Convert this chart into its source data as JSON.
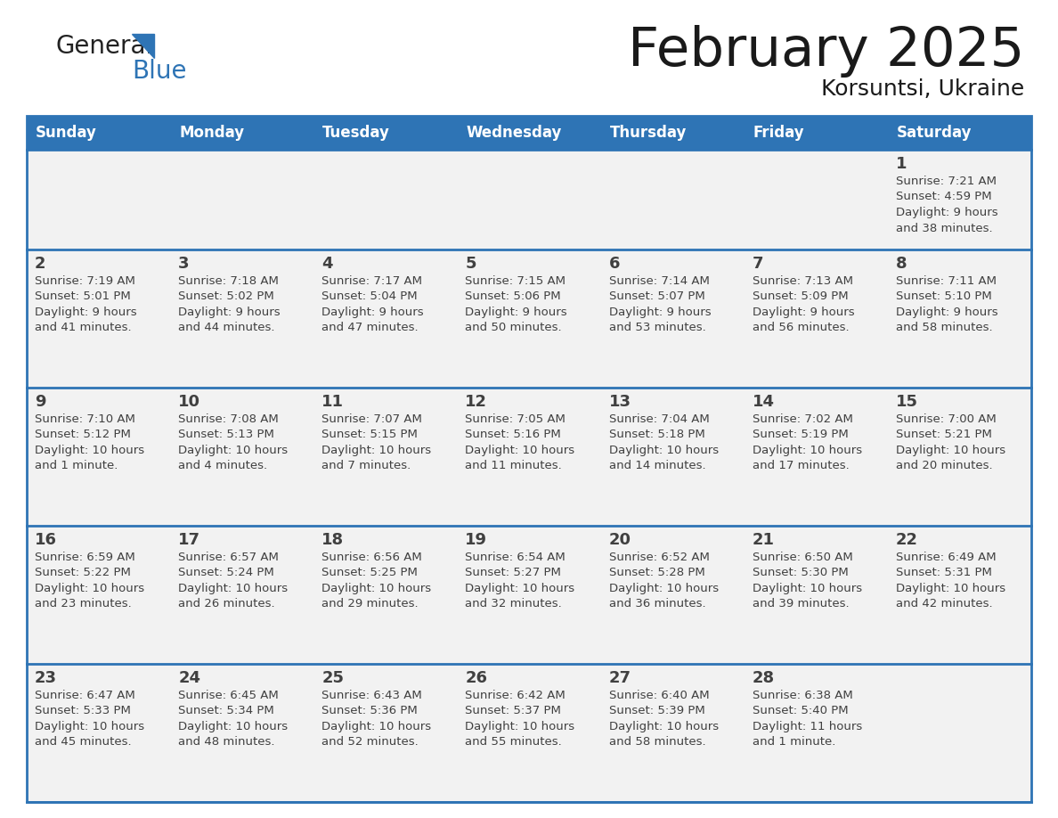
{
  "title": "February 2025",
  "subtitle": "Korsuntsi, Ukraine",
  "days_of_week": [
    "Sunday",
    "Monday",
    "Tuesday",
    "Wednesday",
    "Thursday",
    "Friday",
    "Saturday"
  ],
  "header_bg": "#2e74b5",
  "header_text": "#ffffff",
  "cell_bg": "#f2f2f2",
  "cell_bg_white": "#ffffff",
  "border_color": "#2e74b5",
  "row_line_color": "#2e74b5",
  "text_color": "#404040",
  "day_num_color": "#404040",
  "title_color": "#1a1a1a",
  "calendar_data": [
    {
      "day": 1,
      "col": 6,
      "row": 0,
      "sunrise": "7:21 AM",
      "sunset": "4:59 PM",
      "daylight": "9 hours and 38 minutes."
    },
    {
      "day": 2,
      "col": 0,
      "row": 1,
      "sunrise": "7:19 AM",
      "sunset": "5:01 PM",
      "daylight": "9 hours and 41 minutes."
    },
    {
      "day": 3,
      "col": 1,
      "row": 1,
      "sunrise": "7:18 AM",
      "sunset": "5:02 PM",
      "daylight": "9 hours and 44 minutes."
    },
    {
      "day": 4,
      "col": 2,
      "row": 1,
      "sunrise": "7:17 AM",
      "sunset": "5:04 PM",
      "daylight": "9 hours and 47 minutes."
    },
    {
      "day": 5,
      "col": 3,
      "row": 1,
      "sunrise": "7:15 AM",
      "sunset": "5:06 PM",
      "daylight": "9 hours and 50 minutes."
    },
    {
      "day": 6,
      "col": 4,
      "row": 1,
      "sunrise": "7:14 AM",
      "sunset": "5:07 PM",
      "daylight": "9 hours and 53 minutes."
    },
    {
      "day": 7,
      "col": 5,
      "row": 1,
      "sunrise": "7:13 AM",
      "sunset": "5:09 PM",
      "daylight": "9 hours and 56 minutes."
    },
    {
      "day": 8,
      "col": 6,
      "row": 1,
      "sunrise": "7:11 AM",
      "sunset": "5:10 PM",
      "daylight": "9 hours and 58 minutes."
    },
    {
      "day": 9,
      "col": 0,
      "row": 2,
      "sunrise": "7:10 AM",
      "sunset": "5:12 PM",
      "daylight": "10 hours and 1 minute."
    },
    {
      "day": 10,
      "col": 1,
      "row": 2,
      "sunrise": "7:08 AM",
      "sunset": "5:13 PM",
      "daylight": "10 hours and 4 minutes."
    },
    {
      "day": 11,
      "col": 2,
      "row": 2,
      "sunrise": "7:07 AM",
      "sunset": "5:15 PM",
      "daylight": "10 hours and 7 minutes."
    },
    {
      "day": 12,
      "col": 3,
      "row": 2,
      "sunrise": "7:05 AM",
      "sunset": "5:16 PM",
      "daylight": "10 hours and 11 minutes."
    },
    {
      "day": 13,
      "col": 4,
      "row": 2,
      "sunrise": "7:04 AM",
      "sunset": "5:18 PM",
      "daylight": "10 hours and 14 minutes."
    },
    {
      "day": 14,
      "col": 5,
      "row": 2,
      "sunrise": "7:02 AM",
      "sunset": "5:19 PM",
      "daylight": "10 hours and 17 minutes."
    },
    {
      "day": 15,
      "col": 6,
      "row": 2,
      "sunrise": "7:00 AM",
      "sunset": "5:21 PM",
      "daylight": "10 hours and 20 minutes."
    },
    {
      "day": 16,
      "col": 0,
      "row": 3,
      "sunrise": "6:59 AM",
      "sunset": "5:22 PM",
      "daylight": "10 hours and 23 minutes."
    },
    {
      "day": 17,
      "col": 1,
      "row": 3,
      "sunrise": "6:57 AM",
      "sunset": "5:24 PM",
      "daylight": "10 hours and 26 minutes."
    },
    {
      "day": 18,
      "col": 2,
      "row": 3,
      "sunrise": "6:56 AM",
      "sunset": "5:25 PM",
      "daylight": "10 hours and 29 minutes."
    },
    {
      "day": 19,
      "col": 3,
      "row": 3,
      "sunrise": "6:54 AM",
      "sunset": "5:27 PM",
      "daylight": "10 hours and 32 minutes."
    },
    {
      "day": 20,
      "col": 4,
      "row": 3,
      "sunrise": "6:52 AM",
      "sunset": "5:28 PM",
      "daylight": "10 hours and 36 minutes."
    },
    {
      "day": 21,
      "col": 5,
      "row": 3,
      "sunrise": "6:50 AM",
      "sunset": "5:30 PM",
      "daylight": "10 hours and 39 minutes."
    },
    {
      "day": 22,
      "col": 6,
      "row": 3,
      "sunrise": "6:49 AM",
      "sunset": "5:31 PM",
      "daylight": "10 hours and 42 minutes."
    },
    {
      "day": 23,
      "col": 0,
      "row": 4,
      "sunrise": "6:47 AM",
      "sunset": "5:33 PM",
      "daylight": "10 hours and 45 minutes."
    },
    {
      "day": 24,
      "col": 1,
      "row": 4,
      "sunrise": "6:45 AM",
      "sunset": "5:34 PM",
      "daylight": "10 hours and 48 minutes."
    },
    {
      "day": 25,
      "col": 2,
      "row": 4,
      "sunrise": "6:43 AM",
      "sunset": "5:36 PM",
      "daylight": "10 hours and 52 minutes."
    },
    {
      "day": 26,
      "col": 3,
      "row": 4,
      "sunrise": "6:42 AM",
      "sunset": "5:37 PM",
      "daylight": "10 hours and 55 minutes."
    },
    {
      "day": 27,
      "col": 4,
      "row": 4,
      "sunrise": "6:40 AM",
      "sunset": "5:39 PM",
      "daylight": "10 hours and 58 minutes."
    },
    {
      "day": 28,
      "col": 5,
      "row": 4,
      "sunrise": "6:38 AM",
      "sunset": "5:40 PM",
      "daylight": "11 hours and 1 minute."
    }
  ],
  "num_rows": 5,
  "logo_general_color": "#222222",
  "logo_blue_color": "#2e74b5"
}
